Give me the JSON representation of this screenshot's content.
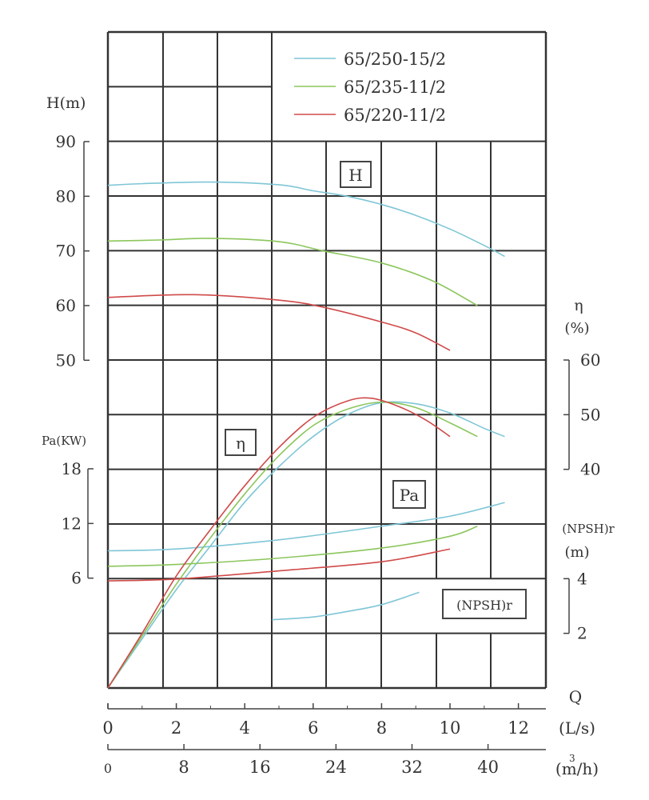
{
  "chart_data": {
    "type": "line",
    "x_axes": [
      {
        "label": "(L/s)",
        "ticks": [
          0,
          2,
          4,
          6,
          8,
          10,
          12
        ],
        "range": [
          0,
          12.8
        ]
      },
      {
        "label": "(m³/h)",
        "label_base": "(m/h)",
        "label_sup": "3",
        "ticks": [
          0,
          8,
          16,
          24,
          32,
          40
        ],
        "range": [
          0,
          46
        ]
      }
    ],
    "x_title": "Q",
    "y_axes": {
      "H": {
        "label": "H(m)",
        "ticks": [
          90,
          80,
          70,
          60,
          50
        ]
      },
      "Pa": {
        "label": "Pa(KW)",
        "ticks": [
          18,
          12,
          6
        ]
      },
      "eta": {
        "label": "η",
        "unit": "(%)",
        "ticks": [
          60,
          50,
          40
        ]
      },
      "npsh": {
        "label": "(NPSH)r",
        "unit": "(m)",
        "ticks": [
          4,
          2
        ]
      }
    },
    "curve_labels": {
      "H": "H",
      "eta": "η",
      "Pa": "Pa",
      "npsh": "(NPSH)r"
    },
    "grid": true,
    "legend_position": "top-right",
    "series": [
      {
        "name": "65/250-15/2",
        "color": "#7fc6d6",
        "H": [
          [
            0,
            82
          ],
          [
            1,
            82.3
          ],
          [
            3,
            82.6
          ],
          [
            5,
            82.1
          ],
          [
            6,
            81
          ],
          [
            7,
            80
          ],
          [
            8,
            78.5
          ],
          [
            9,
            76.5
          ],
          [
            10,
            74
          ],
          [
            11,
            71
          ],
          [
            11.6,
            69
          ]
        ],
        "eta": [
          [
            0,
            0
          ],
          [
            1,
            9
          ],
          [
            2,
            18
          ],
          [
            3,
            26
          ],
          [
            4,
            34
          ],
          [
            5,
            40.5
          ],
          [
            6,
            46
          ],
          [
            7,
            50
          ],
          [
            8,
            52.2
          ],
          [
            9,
            52
          ],
          [
            10,
            50.3
          ],
          [
            11,
            47.5
          ],
          [
            11.6,
            46
          ]
        ],
        "Pa": [
          [
            0,
            9
          ],
          [
            2,
            9.2
          ],
          [
            5,
            10.2
          ],
          [
            8,
            11.7
          ],
          [
            10,
            12.8
          ],
          [
            11.6,
            14.3
          ]
        ],
        "npsh": [
          [
            4.8,
            2.5
          ],
          [
            6,
            2.6
          ],
          [
            7,
            2.8
          ],
          [
            8,
            3.05
          ],
          [
            9.1,
            3.5
          ]
        ]
      },
      {
        "name": "65/235-11/2",
        "color": "#8cc65c",
        "H": [
          [
            0,
            71.8
          ],
          [
            1.5,
            72
          ],
          [
            3,
            72.3
          ],
          [
            5,
            71.7
          ],
          [
            6.3,
            70
          ],
          [
            8,
            67.8
          ],
          [
            9.5,
            64.5
          ],
          [
            10.8,
            60
          ]
        ],
        "eta": [
          [
            0,
            0
          ],
          [
            1,
            9.5
          ],
          [
            2,
            19
          ],
          [
            3,
            27.5
          ],
          [
            4,
            35.5
          ],
          [
            5,
            42.5
          ],
          [
            6,
            48
          ],
          [
            7,
            51
          ],
          [
            8,
            52.3
          ],
          [
            9,
            51.3
          ],
          [
            10,
            48.5
          ],
          [
            10.8,
            46
          ]
        ],
        "Pa": [
          [
            0,
            7.3
          ],
          [
            2,
            7.5
          ],
          [
            5,
            8.2
          ],
          [
            8,
            9.3
          ],
          [
            10,
            10.6
          ],
          [
            10.8,
            11.7
          ]
        ],
        "npsh": []
      },
      {
        "name": "65/220-11/2",
        "color": "#d04a4a",
        "H": [
          [
            0,
            61.5
          ],
          [
            2.5,
            62
          ],
          [
            5,
            61
          ],
          [
            6.3,
            59.7
          ],
          [
            8,
            57
          ],
          [
            9,
            55
          ],
          [
            10,
            51.8
          ]
        ],
        "eta": [
          [
            0,
            0
          ],
          [
            1,
            10
          ],
          [
            2,
            20.5
          ],
          [
            3,
            29
          ],
          [
            4,
            37
          ],
          [
            5,
            44
          ],
          [
            6,
            49.5
          ],
          [
            7,
            52.5
          ],
          [
            7.7,
            53
          ],
          [
            8.5,
            51.5
          ],
          [
            9.3,
            49
          ],
          [
            10,
            46
          ]
        ],
        "Pa": [
          [
            0,
            5.7
          ],
          [
            2,
            5.9
          ],
          [
            5,
            6.8
          ],
          [
            8,
            7.8
          ],
          [
            10,
            9.2
          ]
        ],
        "npsh": []
      }
    ]
  }
}
